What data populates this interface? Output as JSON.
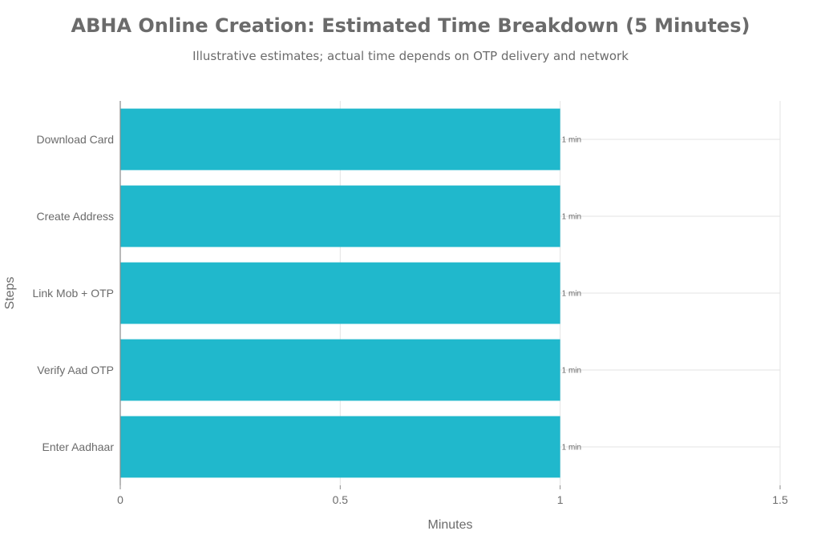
{
  "chart_data": {
    "type": "bar",
    "orientation": "horizontal",
    "title": "ABHA Online Creation: Estimated Time Breakdown (5 Minutes)",
    "subtitle": "Illustrative estimates; actual time depends on OTP delivery and network",
    "xlabel": "Minutes",
    "ylabel": "Steps",
    "xlim": [
      0,
      1.5
    ],
    "xticks": [
      0,
      0.5,
      1,
      1.5
    ],
    "xtick_labels": [
      "0",
      "0.5",
      "1",
      "1.5"
    ],
    "categories": [
      "Download Card",
      "Create Address",
      "Link Mob + OTP",
      "Verify Aad OTP",
      "Enter Aadhaar"
    ],
    "values": [
      1,
      1,
      1,
      1,
      1
    ],
    "data_labels": [
      "1 min",
      "1 min",
      "1 min",
      "1 min",
      "1 min"
    ],
    "bar_color": "#20b8cc",
    "grid": true,
    "legend": "none"
  }
}
